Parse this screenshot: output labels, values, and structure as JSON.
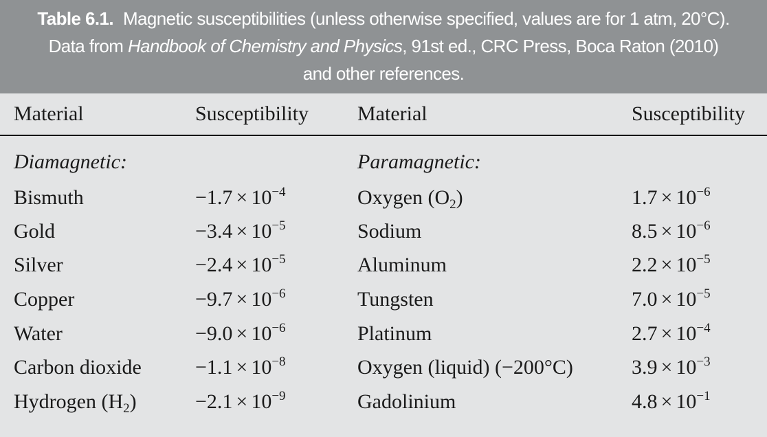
{
  "caption": {
    "label": "Table 6.1.",
    "text_line1": "Magnetic susceptibilities (unless otherwise specified, values are for 1 atm, 20°C).",
    "text_line2_pre": "Data from ",
    "text_line2_source": "Handbook of Chemistry and Physics",
    "text_line2_post": ", 91st ed., CRC Press, Boca Raton (2010)",
    "text_line3": "and other references."
  },
  "headers": {
    "material_left": "Material",
    "susceptibility_left": "Susceptibility",
    "material_right": "Material",
    "susceptibility_right": "Susceptibility"
  },
  "sections": {
    "left": "Diamagnetic:",
    "right": "Paramagnetic:"
  },
  "rows": [
    {
      "left_material": "Bismuth",
      "left_sub": "",
      "left_material_post": "",
      "left_mantissa": "−1.7",
      "left_exp": "−4",
      "right_material": "Oxygen (O",
      "right_sub": "2",
      "right_material_post": ")",
      "right_mantissa": "1.7",
      "right_exp": "−6"
    },
    {
      "left_material": "Gold",
      "left_sub": "",
      "left_material_post": "",
      "left_mantissa": "−3.4",
      "left_exp": "−5",
      "right_material": "Sodium",
      "right_sub": "",
      "right_material_post": "",
      "right_mantissa": "8.5",
      "right_exp": "−6"
    },
    {
      "left_material": "Silver",
      "left_sub": "",
      "left_material_post": "",
      "left_mantissa": "−2.4",
      "left_exp": "−5",
      "right_material": "Aluminum",
      "right_sub": "",
      "right_material_post": "",
      "right_mantissa": "2.2",
      "right_exp": "−5"
    },
    {
      "left_material": "Copper",
      "left_sub": "",
      "left_material_post": "",
      "left_mantissa": "−9.7",
      "left_exp": "−6",
      "right_material": "Tungsten",
      "right_sub": "",
      "right_material_post": "",
      "right_mantissa": "7.0",
      "right_exp": "−5"
    },
    {
      "left_material": "Water",
      "left_sub": "",
      "left_material_post": "",
      "left_mantissa": "−9.0",
      "left_exp": "−6",
      "right_material": "Platinum",
      "right_sub": "",
      "right_material_post": "",
      "right_mantissa": "2.7",
      "right_exp": "−4"
    },
    {
      "left_material": "Carbon dioxide",
      "left_sub": "",
      "left_material_post": "",
      "left_mantissa": "−1.1",
      "left_exp": "−8",
      "right_material": "Oxygen (liquid) (−200°C)",
      "right_sub": "",
      "right_material_post": "",
      "right_mantissa": "3.9",
      "right_exp": "−3"
    },
    {
      "left_material": "Hydrogen (H",
      "left_sub": "2",
      "left_material_post": ")",
      "left_mantissa": "−2.1",
      "left_exp": "−9",
      "right_material": "Gadolinium",
      "right_sub": "",
      "right_material_post": "",
      "right_mantissa": "4.8",
      "right_exp": "−1"
    }
  ],
  "notation": {
    "times": "×",
    "base": "10"
  },
  "colors": {
    "caption_bg": "#8f9294",
    "caption_text": "#ffffff",
    "page_bg": "#e3e4e5",
    "text": "#1a1a1a"
  }
}
